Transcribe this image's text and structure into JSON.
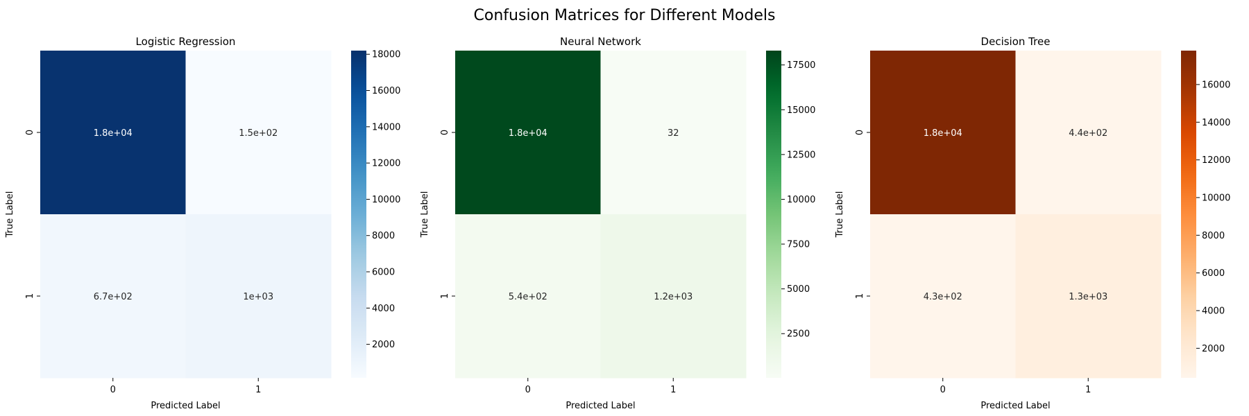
{
  "figure": {
    "title": "Confusion Matrices for Different Models"
  },
  "chart_data": [
    {
      "type": "heatmap",
      "title": "Logistic Regression",
      "xlabel": "Predicted Label",
      "ylabel": "True Label",
      "x_categories": [
        "0",
        "1"
      ],
      "y_categories": [
        "0",
        "1"
      ],
      "values": [
        [
          18000,
          150
        ],
        [
          670,
          1000
        ]
      ],
      "annotations": [
        [
          "1.8e+04",
          "1.5e+02"
        ],
        [
          "6.7e+02",
          "1e+03"
        ]
      ],
      "colormap": "Blues",
      "colorbar": {
        "vmin": 150,
        "vmax": 18200,
        "ticks": [
          2000,
          4000,
          6000,
          8000,
          10000,
          12000,
          14000,
          16000,
          18000
        ]
      }
    },
    {
      "type": "heatmap",
      "title": "Neural Network",
      "xlabel": "Predicted Label",
      "ylabel": "True Label",
      "x_categories": [
        "0",
        "1"
      ],
      "y_categories": [
        "0",
        "1"
      ],
      "values": [
        [
          18000,
          32
        ],
        [
          540,
          1200
        ]
      ],
      "annotations": [
        [
          "1.8e+04",
          "32"
        ],
        [
          "5.4e+02",
          "1.2e+03"
        ]
      ],
      "colormap": "Greens",
      "colorbar": {
        "vmin": 32,
        "vmax": 18300,
        "ticks": [
          2500,
          5000,
          7500,
          10000,
          12500,
          15000,
          17500
        ]
      }
    },
    {
      "type": "heatmap",
      "title": "Decision Tree",
      "xlabel": "Predicted Label",
      "ylabel": "True Label",
      "x_categories": [
        "0",
        "1"
      ],
      "y_categories": [
        "0",
        "1"
      ],
      "values": [
        [
          17800,
          440
        ],
        [
          430,
          1300
        ]
      ],
      "annotations": [
        [
          "1.8e+04",
          "4.4e+02"
        ],
        [
          "4.3e+02",
          "1.3e+03"
        ]
      ],
      "colormap": "Oranges",
      "colorbar": {
        "vmin": 430,
        "vmax": 17800,
        "ticks": [
          2000,
          4000,
          6000,
          8000,
          10000,
          12000,
          14000,
          16000
        ]
      }
    }
  ]
}
